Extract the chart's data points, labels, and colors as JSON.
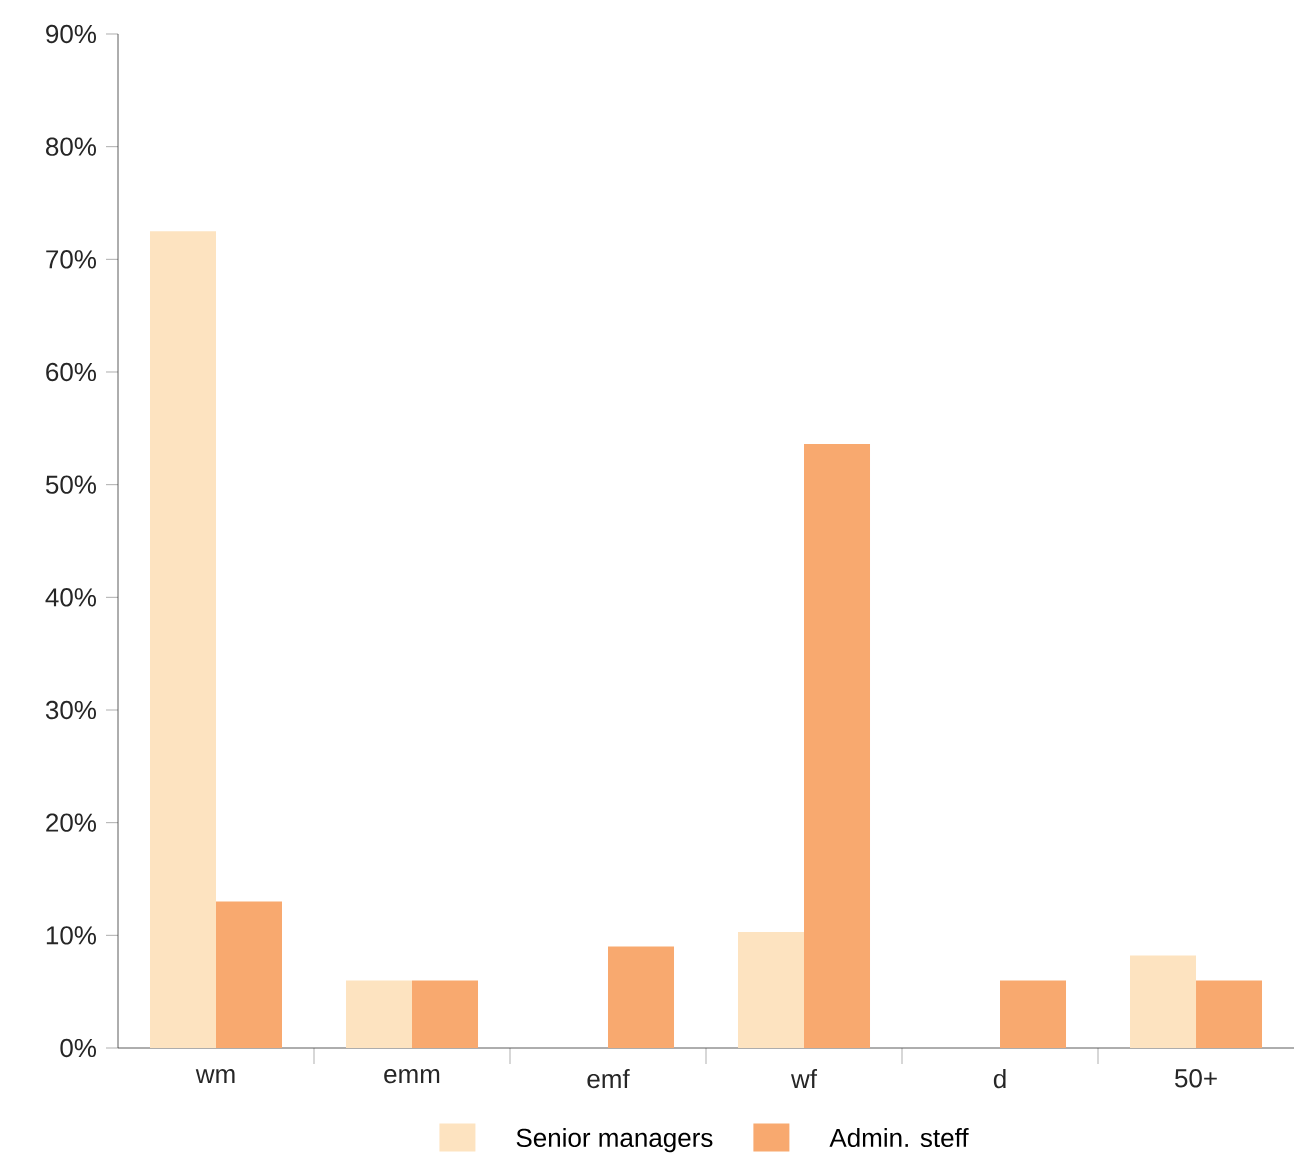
{
  "chart_data": {
    "type": "bar",
    "categories": [
      "wm",
      "emm",
      "emf",
      "wf",
      "d",
      "50+"
    ],
    "series": [
      {
        "name": "Senior managers",
        "color": "#fde3c0",
        "values": [
          72.5,
          6,
          0,
          10.3,
          0,
          8.2
        ]
      },
      {
        "name": "Admin. steff",
        "color": "#f8a96f",
        "values": [
          13,
          6,
          9,
          53.6,
          6,
          6
        ]
      }
    ],
    "ylim": [
      0,
      90
    ],
    "yticks": [
      {
        "value": 0,
        "label": "0%"
      },
      {
        "value": 10,
        "label": "10%"
      },
      {
        "value": 20,
        "label": "20%"
      },
      {
        "value": 30,
        "label": "30%"
      },
      {
        "value": 40,
        "label": "40%"
      },
      {
        "value": 50,
        "label": "50%"
      },
      {
        "value": 60,
        "label": "60%"
      },
      {
        "value": 70,
        "label": "70%"
      },
      {
        "value": 80,
        "label": "80%"
      },
      {
        "value": 90,
        "label": "90%"
      }
    ],
    "grid": false,
    "legend": "bottom"
  }
}
